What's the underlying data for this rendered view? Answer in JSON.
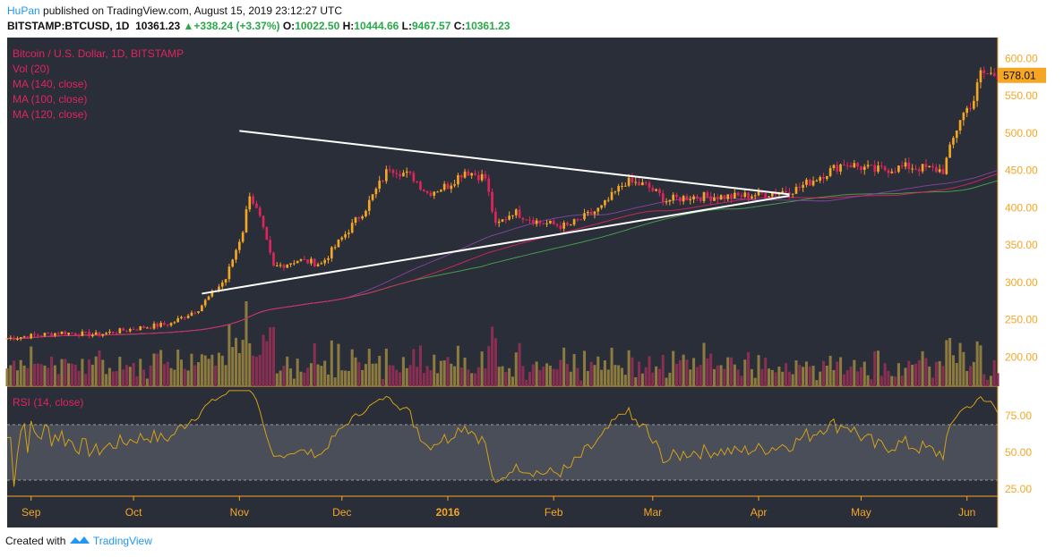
{
  "header": {
    "author": "HuPan",
    "published": "published on TradingView.com, August 15, 2019 23:12:27 UTC",
    "symbol": "BITSTAMP:BTCUSD, 1D",
    "last": "10361.23",
    "change_arrow": "▲",
    "change": "+338.24 (+3.37%)",
    "o_label": "O:",
    "o_value": "10022.50",
    "h_label": "H:",
    "h_value": "10444.66",
    "l_label": "L:",
    "l_value": "9467.57",
    "c_label": "C:",
    "c_value": "10361.23"
  },
  "legend": {
    "title": "Bitcoin / U.S. Dollar, 1D, BITSTAMP",
    "items": [
      "Vol (20)",
      "MA (140, close)",
      "MA (100, close)",
      "MA (120, close)"
    ]
  },
  "rsi_label": "RSI (14, close)",
  "price_badge": "578.01",
  "footer": {
    "created": "Created with",
    "brand": "TradingView"
  },
  "colors": {
    "background": "#2a2e39",
    "up": "#f5a623",
    "down": "#e0245e",
    "legend": "#e0245e",
    "axis": "#f5a623",
    "ma140": "#4caf50",
    "ma100": "#8e44ad",
    "ma120": "#e0245e",
    "rsi": "#d4a017",
    "trendline": "#ffffff"
  },
  "chart_data": {
    "type": "candlestick",
    "price_ticks": [
      600,
      550,
      500,
      450,
      400,
      350,
      300,
      250,
      200
    ],
    "price_tick_labels": [
      "600.00",
      "550.00",
      "500.00",
      "450.00",
      "400.00",
      "350.00",
      "300.00",
      "250.00",
      "200.00"
    ],
    "ylim": [
      161,
      628
    ],
    "rsi_ticks": [
      75,
      50,
      25
    ],
    "rsi_tick_labels": [
      "75.00",
      "50.00",
      "25.00"
    ],
    "rsi_ylim": [
      20,
      95
    ],
    "rsi_band": [
      30,
      70
    ],
    "x_labels": [
      {
        "label": "Sep",
        "date": "2015-09-01"
      },
      {
        "label": "Oct",
        "date": "2015-10-01"
      },
      {
        "label": "Nov",
        "date": "2015-11-01"
      },
      {
        "label": "Dec",
        "date": "2015-12-01"
      },
      {
        "label": "2016",
        "date": "2016-01-01"
      },
      {
        "label": "Feb",
        "date": "2016-02-01"
      },
      {
        "label": "Mar",
        "date": "2016-03-01"
      },
      {
        "label": "Apr",
        "date": "2016-04-01"
      },
      {
        "label": "May",
        "date": "2016-05-01"
      },
      {
        "label": "Jun",
        "date": "2016-06-01"
      }
    ],
    "x_range": [
      "2015-08-25",
      "2016-06-10"
    ],
    "price_keypoints": [
      [
        "2015-08-25",
        225
      ],
      [
        "2015-09-10",
        233
      ],
      [
        "2015-09-20",
        230
      ],
      [
        "2015-10-01",
        238
      ],
      [
        "2015-10-12",
        245
      ],
      [
        "2015-10-20",
        265
      ],
      [
        "2015-10-28",
        305
      ],
      [
        "2015-11-02",
        370
      ],
      [
        "2015-11-04",
        420
      ],
      [
        "2015-11-07",
        385
      ],
      [
        "2015-11-11",
        320
      ],
      [
        "2015-11-18",
        330
      ],
      [
        "2015-11-25",
        325
      ],
      [
        "2015-12-02",
        365
      ],
      [
        "2015-12-08",
        400
      ],
      [
        "2015-12-15",
        455
      ],
      [
        "2015-12-22",
        440
      ],
      [
        "2015-12-26",
        420
      ],
      [
        "2016-01-01",
        430
      ],
      [
        "2016-01-06",
        450
      ],
      [
        "2016-01-12",
        440
      ],
      [
        "2016-01-15",
        375
      ],
      [
        "2016-01-20",
        395
      ],
      [
        "2016-01-28",
        380
      ],
      [
        "2016-02-05",
        375
      ],
      [
        "2016-02-15",
        400
      ],
      [
        "2016-02-22",
        435
      ],
      [
        "2016-02-28",
        430
      ],
      [
        "2016-03-05",
        410
      ],
      [
        "2016-03-12",
        415
      ],
      [
        "2016-03-25",
        415
      ],
      [
        "2016-04-05",
        420
      ],
      [
        "2016-04-12",
        425
      ],
      [
        "2016-04-20",
        445
      ],
      [
        "2016-04-26",
        460
      ],
      [
        "2016-05-05",
        450
      ],
      [
        "2016-05-15",
        455
      ],
      [
        "2016-05-25",
        450
      ],
      [
        "2016-05-30",
        520
      ],
      [
        "2016-06-03",
        545
      ],
      [
        "2016-06-05",
        580
      ],
      [
        "2016-06-10",
        578
      ]
    ],
    "trendlines": [
      {
        "name": "upper",
        "from": [
          "2015-11-01",
          503
        ],
        "to": [
          "2016-04-10",
          418
        ]
      },
      {
        "name": "lower",
        "from": [
          "2015-10-21",
          285
        ],
        "to": [
          "2016-04-10",
          416
        ]
      }
    ]
  }
}
